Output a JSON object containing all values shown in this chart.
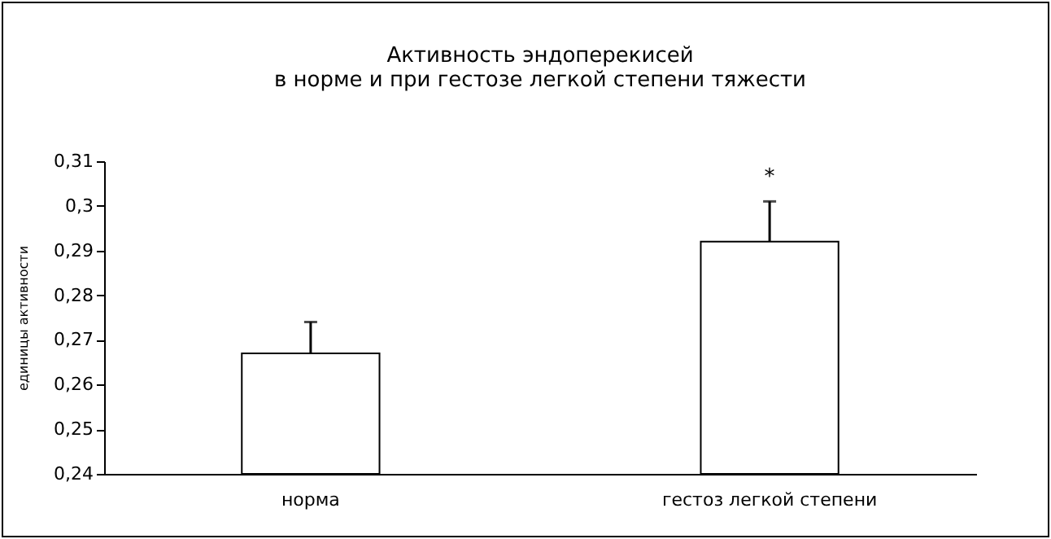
{
  "chart_data": {
    "type": "bar",
    "title": [
      "Активность  эндоперекисей",
      "в норме и при гестозе легкой степени тяжести"
    ],
    "ylabel": "единицы активности",
    "categories": [
      "норма",
      "гестоз легкой степени"
    ],
    "values": [
      0.267,
      0.292
    ],
    "errors": [
      [
        0.267,
        0.274
      ],
      [
        0.292,
        0.301
      ]
    ],
    "color": "#ffffff",
    "ylim": [
      0.24,
      0.31
    ],
    "yticks": [
      {
        "value": 0.24,
        "label": "0,24"
      },
      {
        "value": 0.25,
        "label": "0,25"
      },
      {
        "value": 0.26,
        "label": "0,26"
      },
      {
        "value": 0.27,
        "label": "0,27"
      },
      {
        "value": 0.28,
        "label": "0,28"
      },
      {
        "value": 0.29,
        "label": "0,29"
      },
      {
        "value": 0.3,
        "label": "0,3"
      },
      {
        "value": 0.31,
        "label": "0,31"
      }
    ],
    "annotations": [
      "*"
    ],
    "grid": false
  }
}
